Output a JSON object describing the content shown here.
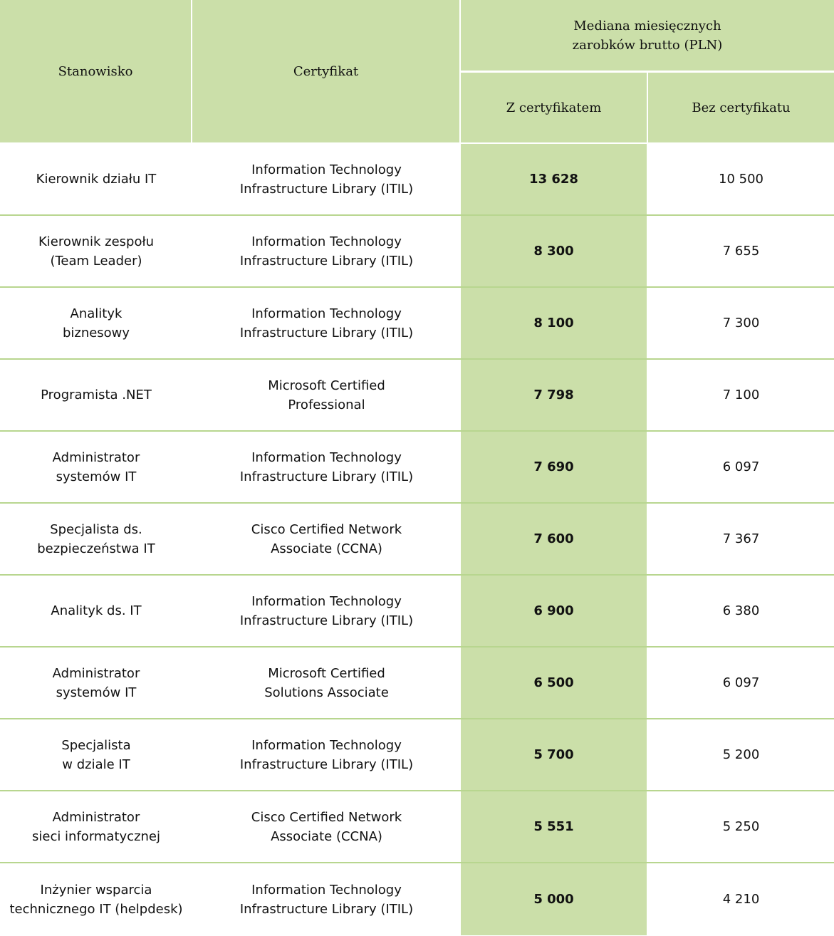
{
  "colors": {
    "header_bg": "#cbdfa9",
    "row_divider": "#b8d68f",
    "highlight_col_bg": "#cbdfa9"
  },
  "header": {
    "position": "Stanowisko",
    "certificate": "Certyfikat",
    "group": "Mediana miesięcznych\nzarobków brutto (PLN)",
    "with_cert": "Z certyfikatem",
    "without_cert": "Bez certyfikatu"
  },
  "rows": [
    {
      "position": "Kierownik działu IT",
      "certificate": "Information Technology\nInfrastructure Library (ITIL)",
      "with_cert": "13 628",
      "without_cert": "10 500"
    },
    {
      "position": "Kierownik zespołu\n(Team Leader)",
      "certificate": "Information Technology\nInfrastructure Library (ITIL)",
      "with_cert": "8 300",
      "without_cert": "7 655"
    },
    {
      "position": "Analityk\nbiznesowy",
      "certificate": "Information Technology\nInfrastructure Library (ITIL)",
      "with_cert": "8 100",
      "without_cert": "7 300"
    },
    {
      "position": "Programista .NET",
      "certificate": "Microsoft Certified\nProfessional",
      "with_cert": "7 798",
      "without_cert": "7 100"
    },
    {
      "position": "Administrator\nsystemów IT",
      "certificate": "Information Technology\nInfrastructure Library (ITIL)",
      "with_cert": "7 690",
      "without_cert": "6 097"
    },
    {
      "position": "Specjalista ds.\nbezpieczeństwa IT",
      "certificate": "Cisco Certified Network\nAssociate (CCNA)",
      "with_cert": "7 600",
      "without_cert": "7 367"
    },
    {
      "position": "Analityk ds. IT",
      "certificate": "Information Technology\nInfrastructure Library (ITIL)",
      "with_cert": "6 900",
      "without_cert": "6 380"
    },
    {
      "position": "Administrator\nsystemów IT",
      "certificate": "Microsoft Certified\nSolutions Associate",
      "with_cert": "6 500",
      "without_cert": "6 097"
    },
    {
      "position": "Specjalista\nw dziale IT",
      "certificate": "Information Technology\nInfrastructure Library (ITIL)",
      "with_cert": "5 700",
      "without_cert": "5 200"
    },
    {
      "position": "Administrator\nsieci informatycznej",
      "certificate": "Cisco Certified Network\nAssociate (CCNA)",
      "with_cert": "5 551",
      "without_cert": "5 250"
    },
    {
      "position": "Inżynier wsparcia\ntechnicznego IT (helpdesk)",
      "certificate": "Information Technology\nInfrastructure Library (ITIL)",
      "with_cert": "5 000",
      "without_cert": "4 210"
    }
  ]
}
